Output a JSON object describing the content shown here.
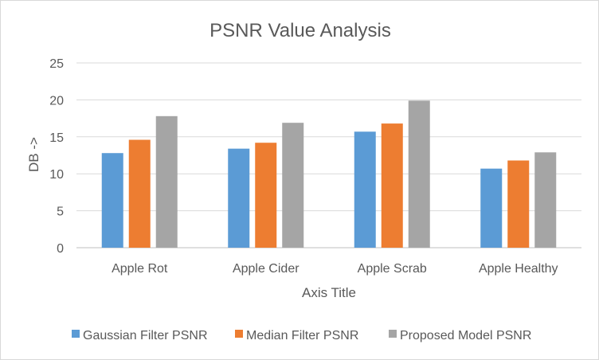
{
  "chart_data": {
    "type": "bar",
    "title": "PSNR Value Analysis",
    "xlabel": "Axis Title",
    "ylabel": "DB ->",
    "ylim": [
      0,
      25
    ],
    "yticks": [
      0,
      5,
      10,
      15,
      20,
      25
    ],
    "grid": true,
    "legend_position": "bottom",
    "categories": [
      "Apple Rot",
      "Apple Cider",
      "Apple Scrab",
      "Apple Healthy"
    ],
    "series": [
      {
        "name": "Gaussian Filter PSNR",
        "color": "#5b9bd5",
        "values": [
          12.8,
          13.4,
          15.7,
          10.7
        ]
      },
      {
        "name": "Median Filter PSNR",
        "color": "#ed7d31",
        "values": [
          14.6,
          14.2,
          16.8,
          11.8
        ]
      },
      {
        "name": "Proposed Model PSNR",
        "color": "#a5a5a5",
        "values": [
          17.8,
          16.9,
          19.9,
          12.9
        ]
      }
    ]
  }
}
